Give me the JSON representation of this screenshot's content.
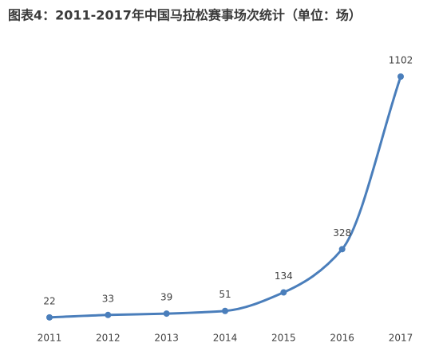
{
  "chart_data": {
    "type": "line",
    "title": "图表4：2011-2017年中国马拉松赛事场次统计（单位：场）",
    "categories": [
      "2011",
      "2012",
      "2013",
      "2014",
      "2015",
      "2016",
      "2017"
    ],
    "series": [
      {
        "name": "马拉松赛事场次",
        "color": "#4a7ebb",
        "values": [
          22,
          33,
          39,
          51,
          134,
          328,
          1102
        ]
      }
    ]
  }
}
